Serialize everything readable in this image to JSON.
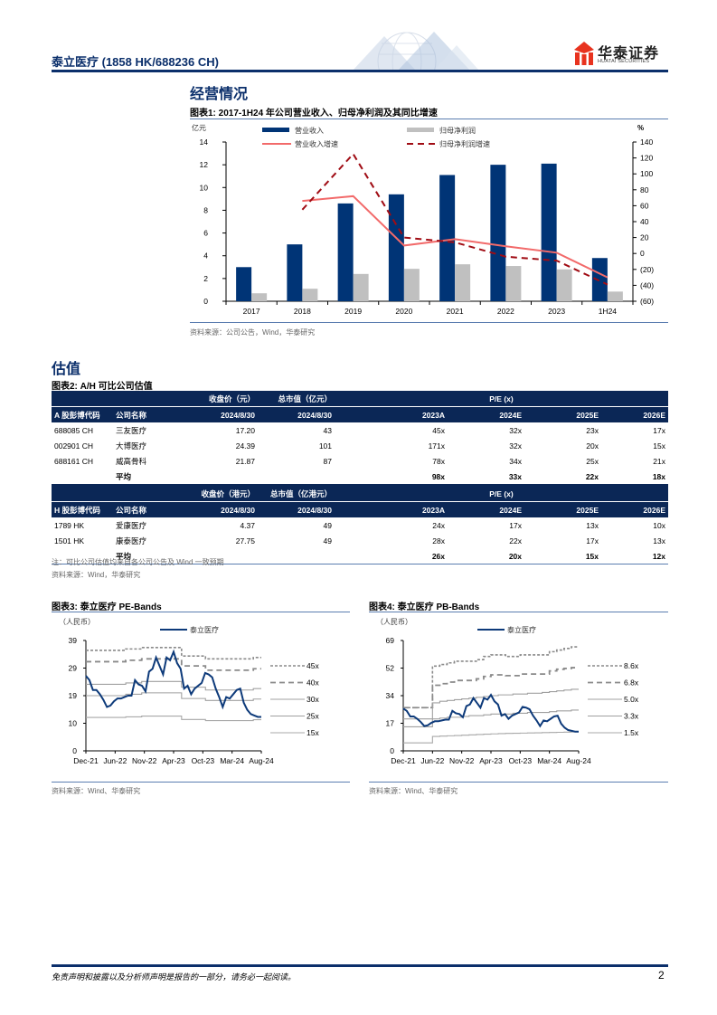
{
  "header": {
    "title": "泰立医疗  (1858 HK/688236 CH)",
    "logo_cn": "华泰证券",
    "logo_en": "HUATAI SECURITIES"
  },
  "section1": {
    "heading": "经营情况"
  },
  "fig1": {
    "title": "图表1:  2017-1H24 年公司营业收入、归母净利润及其同比增速",
    "source": "资料来源：公司公告，Wind，华泰研究"
  },
  "section2": {
    "heading": "估值"
  },
  "fig2": {
    "title": "图表2:  A/H 可比公司估值",
    "note": "注：可比公司估值均来自各公司公告及 Wind 一致预期",
    "source": "资料来源：Wind，华泰研究",
    "a_block": {
      "col_price": "收盘价（元）",
      "col_mcap": "总市值（亿元）",
      "col_pe": "P/E   (x)",
      "col_code": "A 股彭博代码",
      "col_name": "公司名称",
      "date1": "2024/8/30",
      "date2": "2024/8/30",
      "years": [
        "2023A",
        "2024E",
        "2025E",
        "2026E"
      ],
      "rows": [
        {
          "code": "688085 CH",
          "name": "三友医疗",
          "price": "17.20",
          "mcap": "43",
          "pe": [
            "45x",
            "32x",
            "23x",
            "17x"
          ]
        },
        {
          "code": "002901 CH",
          "name": "大博医疗",
          "price": "24.39",
          "mcap": "101",
          "pe": [
            "171x",
            "32x",
            "20x",
            "15x"
          ]
        },
        {
          "code": "688161 CH",
          "name": "威高骨科",
          "price": "21.87",
          "mcap": "87",
          "pe": [
            "78x",
            "34x",
            "25x",
            "21x"
          ]
        }
      ],
      "avg_label": "平均",
      "avg": [
        "98x",
        "33x",
        "22x",
        "18x"
      ]
    },
    "h_block": {
      "col_price": "收盘价（港元）",
      "col_mcap": "总市值（亿港元）",
      "col_pe": "P/E   (x)",
      "col_code": "H 股彭博代码",
      "col_name": "公司名称",
      "date1": "2024/8/30",
      "date2": "2024/8/30",
      "years": [
        "2023A",
        "2024E",
        "2025E",
        "2026E"
      ],
      "rows": [
        {
          "code": "1789 HK",
          "name": "爱康医疗",
          "price": "4.37",
          "mcap": "49",
          "pe": [
            "24x",
            "17x",
            "13x",
            "10x"
          ]
        },
        {
          "code": "1501 HK",
          "name": "康泰医疗",
          "price": "27.75",
          "mcap": "49",
          "pe": [
            "28x",
            "22x",
            "17x",
            "13x"
          ]
        }
      ],
      "avg_label": "平均",
      "avg": [
        "26x",
        "20x",
        "15x",
        "12x"
      ]
    }
  },
  "fig3": {
    "title": "图表3:  泰立医疗 PE-Bands",
    "source": "资料来源：Wind、华泰研究"
  },
  "fig4": {
    "title": "图表4:  泰立医疗 PB-Bands",
    "source": "资料来源：Wind、华泰研究"
  },
  "footer": {
    "disclaimer": "免责声明和披露以及分析师声明是报告的一部分，请务必一起阅读。",
    "page": "2"
  },
  "colors": {
    "navy": "#0b2f6b",
    "bar_rev": "#003476",
    "bar_profit": "#c0c0c0",
    "rev_growth": "#f26a6a",
    "profit_growth": "#a00c14",
    "band": "#9a9a9a"
  },
  "chart_data": [
    {
      "type": "bar",
      "title": "2017-1H24 年公司营业收入、归母净利润及其同比增速",
      "categories": [
        "2017",
        "2018",
        "2019",
        "2020",
        "2021",
        "2022",
        "2023",
        "1H24"
      ],
      "ylabel": "亿元",
      "y2label": "%",
      "ylim": [
        0,
        14
      ],
      "yticks": [
        "0",
        "2",
        "4",
        "6",
        "8",
        "10",
        "12",
        "14"
      ],
      "y2lim": [
        -60,
        140
      ],
      "y2ticks": [
        "(60)",
        "(40)",
        "(20)",
        "0",
        "20",
        "40",
        "60",
        "80",
        "100",
        "120",
        "140"
      ],
      "legend": "top",
      "series": [
        {
          "name": "营业收入",
          "kind": "bar",
          "axis": "left",
          "values": [
            3.0,
            5.0,
            8.6,
            9.4,
            11.1,
            12.0,
            12.1,
            3.8
          ]
        },
        {
          "name": "归母净利润",
          "kind": "bar",
          "axis": "left",
          "values": [
            0.7,
            1.1,
            2.4,
            2.85,
            3.25,
            3.1,
            2.8,
            0.85
          ]
        },
        {
          "name": "营业收入增速",
          "kind": "line",
          "axis": "right",
          "values": [
            null,
            66,
            72,
            10,
            18,
            9,
            1,
            -30
          ]
        },
        {
          "name": "归母净利润增速",
          "kind": "line-dashed",
          "axis": "right",
          "values": [
            null,
            55,
            125,
            20,
            14,
            -4,
            -9,
            -39
          ]
        }
      ]
    },
    {
      "type": "line",
      "title": "泰立医疗 PE-Bands",
      "ylabel": "（人民币）",
      "ylim": [
        0,
        39
      ],
      "yticks": [
        "0",
        "10",
        "19",
        "29",
        "39"
      ],
      "xticks": [
        "Dec-21",
        "Jun-22",
        "Nov-22",
        "Apr-23",
        "Oct-23",
        "Mar-24",
        "Aug-24"
      ],
      "legend_series": "泰立医疗",
      "band_labels": [
        "45x",
        "40x",
        "30x",
        "25x",
        "15x"
      ],
      "series": [
        {
          "name": "泰立医疗",
          "values": [
            26.5,
            25,
            21.5,
            21.5,
            20,
            18,
            15.5,
            16,
            17.5,
            18.5,
            18.5,
            19,
            19.5,
            19.5,
            25,
            23.5,
            23,
            21,
            28,
            29,
            33,
            30,
            27,
            33,
            32,
            35,
            31,
            29,
            22,
            23,
            20,
            22,
            23,
            24,
            27.5,
            27,
            26,
            22,
            19,
            15.5,
            19,
            18.5,
            20,
            21.5,
            22,
            17,
            14.5,
            13,
            12.5,
            12,
            12
          ]
        },
        {
          "name": "45x",
          "values": [
            35.5,
            35.5,
            35.5,
            35.5,
            35.5,
            36,
            36,
            36.5,
            36.5,
            36.5,
            36.5,
            36.5,
            33.5,
            33.5,
            33.5,
            32.5,
            32.5,
            32.5,
            32.5,
            32.5,
            32.5,
            33
          ]
        },
        {
          "name": "40x",
          "values": [
            31.5,
            31.5,
            31.5,
            31.5,
            31.5,
            32,
            32,
            32.5,
            32.5,
            32.5,
            32.5,
            32.5,
            30,
            30,
            30,
            28.5,
            28.5,
            28.5,
            28.5,
            28.5,
            28.5,
            29
          ]
        },
        {
          "name": "30x",
          "values": [
            23.5,
            23.5,
            23.5,
            23.5,
            23.5,
            24,
            24,
            24.5,
            24.5,
            24.5,
            24.5,
            24.5,
            22.5,
            22.5,
            22.5,
            21.5,
            21.5,
            21.5,
            21.5,
            21.5,
            21.5,
            22
          ]
        },
        {
          "name": "25x",
          "values": [
            19.5,
            19.5,
            19.5,
            19.5,
            19.5,
            20,
            20,
            20.5,
            20.5,
            20.5,
            20.5,
            20.5,
            18.5,
            18.5,
            18.5,
            17.8,
            17.8,
            17.8,
            17.8,
            17.8,
            17.8,
            18.3
          ]
        },
        {
          "name": "15x",
          "values": [
            11.8,
            11.8,
            11.8,
            11.8,
            11.8,
            12,
            12,
            12.3,
            12.3,
            12.3,
            12.3,
            12.3,
            11.1,
            11.1,
            11.1,
            10.7,
            10.7,
            10.7,
            10.7,
            10.7,
            10.7,
            11
          ]
        }
      ]
    },
    {
      "type": "line",
      "title": "泰立医疗 PB-Bands",
      "ylabel": "（人民币）",
      "ylim": [
        0,
        69
      ],
      "yticks": [
        "0",
        "17",
        "34",
        "52",
        "69"
      ],
      "xticks": [
        "Dec-21",
        "Jun-22",
        "Nov-22",
        "Apr-23",
        "Oct-23",
        "Mar-24",
        "Aug-24"
      ],
      "legend_series": "泰立医疗",
      "band_labels": [
        "8.6x",
        "6.8x",
        "5.0x",
        "3.3x",
        "1.5x"
      ],
      "series": [
        {
          "name": "泰立医疗",
          "values": [
            26.5,
            25,
            21.5,
            21.5,
            20,
            18,
            15.5,
            16,
            17.5,
            18.5,
            18.5,
            19,
            19.5,
            19.5,
            25,
            23.5,
            23,
            21,
            28,
            29,
            33,
            30,
            27,
            33,
            32,
            35,
            31,
            29,
            22,
            23,
            20,
            22,
            23,
            24,
            27.5,
            27,
            26,
            22,
            19,
            15.5,
            19,
            18.5,
            20,
            21.5,
            22,
            17,
            14.5,
            13,
            12.5,
            12,
            12
          ]
        },
        {
          "name": "8.6x",
          "values": [
            27,
            27,
            27,
            27,
            53,
            54,
            55,
            56,
            56,
            56,
            57,
            59,
            60,
            60,
            59,
            59,
            60,
            60,
            60,
            60,
            62,
            63,
            64,
            65
          ]
        },
        {
          "name": "6.8x",
          "values": [
            27,
            27,
            27,
            27,
            41,
            42,
            43,
            44,
            44,
            44,
            45,
            46.5,
            47.5,
            47.5,
            47,
            47,
            48,
            48,
            48,
            48,
            50,
            51,
            51.5,
            52
          ]
        },
        {
          "name": "5.0x",
          "values": [
            20,
            20,
            20,
            20,
            30,
            31,
            31.5,
            32,
            32.5,
            33,
            33.5,
            34,
            34.5,
            35,
            35,
            35.5,
            35.5,
            36,
            36,
            36.5,
            37,
            37.5,
            38,
            38.5
          ]
        },
        {
          "name": "3.3x",
          "values": [
            15,
            15,
            15,
            15,
            20,
            20.5,
            21,
            21,
            21.5,
            22,
            22,
            22.5,
            23,
            23,
            23,
            23.5,
            23.5,
            24,
            24,
            24,
            24.5,
            25,
            25,
            25.5
          ]
        },
        {
          "name": "1.5x",
          "values": [
            5,
            5,
            5,
            5,
            9,
            9.2,
            9.4,
            9.6,
            9.8,
            10,
            10.2,
            10.4,
            10.6,
            10.8,
            10.9,
            11,
            11.1,
            11.2,
            11.3,
            11.4,
            11.5,
            11.6,
            11.7,
            11.8
          ]
        }
      ]
    }
  ]
}
